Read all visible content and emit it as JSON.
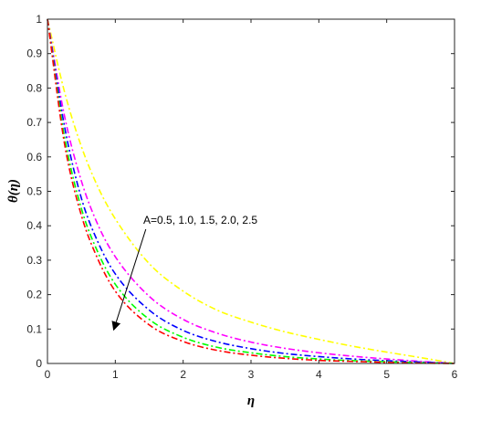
{
  "chart_data": {
    "type": "line",
    "xlabel": "η",
    "ylabel": "θ(η)",
    "xlim": [
      0,
      6
    ],
    "ylim": [
      0,
      1
    ],
    "xticks": [
      0,
      1,
      2,
      3,
      4,
      5,
      6
    ],
    "yticks": [
      0,
      0.1,
      0.2,
      0.3,
      0.4,
      0.5,
      0.6,
      0.7,
      0.8,
      0.9,
      1
    ],
    "xtick_labels": [
      "0",
      "1",
      "2",
      "3",
      "4",
      "5",
      "6"
    ],
    "ytick_labels": [
      "0",
      "0.1",
      "0.2",
      "0.3",
      "0.4",
      "0.5",
      "0.6",
      "0.7",
      "0.8",
      "0.9",
      "1"
    ],
    "grid": false,
    "line_style": "dash-dot",
    "annotation": {
      "text": "A=0.5, 1.0, 1.5, 2.0, 2.5",
      "arrow_from": [
        1.45,
        0.39
      ],
      "arrow_to": [
        0.98,
        0.1
      ]
    },
    "x": [
      0,
      0.25,
      0.5,
      0.75,
      1,
      1.5,
      2,
      2.5,
      3,
      3.5,
      4,
      4.5,
      5,
      5.5,
      6
    ],
    "series": [
      {
        "color": "#ffff00",
        "values": [
          1,
          0.79,
          0.63,
          0.51,
          0.42,
          0.29,
          0.21,
          0.155,
          0.12,
          0.092,
          0.07,
          0.05,
          0.033,
          0.017,
          0
        ]
      },
      {
        "color": "#ff00ff",
        "values": [
          1,
          0.72,
          0.53,
          0.4,
          0.31,
          0.195,
          0.128,
          0.088,
          0.062,
          0.044,
          0.031,
          0.021,
          0.013,
          0.006,
          0
        ]
      },
      {
        "color": "#0000ff",
        "values": [
          1,
          0.69,
          0.48,
          0.35,
          0.26,
          0.155,
          0.096,
          0.063,
          0.043,
          0.029,
          0.02,
          0.013,
          0.008,
          0.004,
          0
        ]
      },
      {
        "color": "#00ff00",
        "values": [
          1,
          0.66,
          0.45,
          0.32,
          0.23,
          0.128,
          0.076,
          0.047,
          0.031,
          0.02,
          0.013,
          0.008,
          0.005,
          0.002,
          0
        ]
      },
      {
        "color": "#ff0000",
        "values": [
          1,
          0.64,
          0.43,
          0.3,
          0.21,
          0.112,
          0.064,
          0.038,
          0.024,
          0.015,
          0.009,
          0.006,
          0.003,
          0.001,
          0
        ]
      }
    ]
  }
}
